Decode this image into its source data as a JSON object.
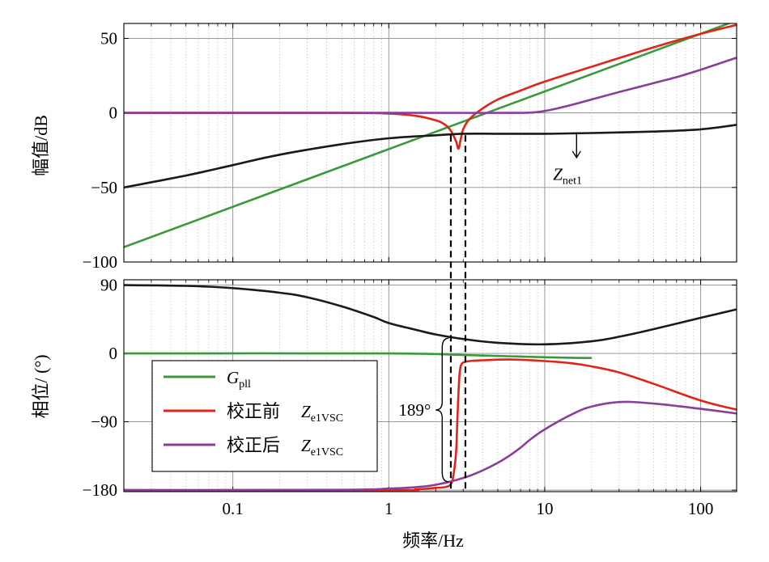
{
  "chart_data": [
    {
      "type": "line",
      "panel": "magnitude",
      "ylabel": "幅值/dB",
      "xscale": "log",
      "xlim": [
        0.02,
        170
      ],
      "ylim": [
        -100,
        60
      ],
      "xticks": [
        0.1,
        1,
        10,
        100
      ],
      "xtick_labels": [
        "0.1",
        "1",
        "10",
        "100"
      ],
      "yticks": [
        -100,
        -50,
        0,
        50
      ],
      "ytick_labels": [
        "−100",
        "−50",
        "0",
        "50"
      ],
      "grid": true,
      "annotations": [
        {
          "text": "Z",
          "sub": "net1",
          "x": 14,
          "y": -45
        },
        {
          "type": "arrow",
          "x": 16,
          "y_from": -13,
          "y_to": -30
        },
        {
          "type": "dashed-line",
          "x": 2.5,
          "y_from": -15
        },
        {
          "type": "dashed-line",
          "x": 3.1,
          "y_from": -15
        }
      ],
      "series": [
        {
          "name": "Gpll",
          "color": "#3a9a3a",
          "x": [
            0.02,
            170
          ],
          "y": [
            -90,
            62
          ]
        },
        {
          "name": "校正前 Ze1VSC",
          "color": "#e02418",
          "x": [
            0.02,
            0.5,
            1,
            1.5,
            2,
            2.3,
            2.5,
            2.7,
            2.8,
            2.9,
            3,
            3.3,
            4,
            5,
            7,
            10,
            20,
            50,
            100,
            170
          ],
          "y": [
            0,
            0,
            -0.5,
            -2,
            -5,
            -8,
            -12,
            -19,
            -24,
            -17,
            -11,
            -4,
            3,
            9,
            15,
            21,
            31,
            44,
            53,
            59
          ]
        },
        {
          "name": "校正后 Ze1VSC",
          "color": "#8a3d9a",
          "x": [
            0.02,
            1,
            5,
            8,
            10,
            12,
            15,
            20,
            30,
            50,
            70,
            100,
            170
          ],
          "y": [
            0,
            0,
            0,
            0.2,
            1.3,
            3,
            5.5,
            9,
            14,
            20,
            24,
            29,
            37
          ]
        },
        {
          "name": "Znet1",
          "color": "#1a1a1a",
          "x": [
            0.02,
            0.05,
            0.1,
            0.2,
            0.5,
            1,
            2,
            3,
            5,
            10,
            20,
            50,
            100,
            170
          ],
          "y": [
            -50,
            -42,
            -35,
            -28,
            -21,
            -17,
            -15,
            -14,
            -14,
            -14,
            -13.5,
            -12.5,
            -11,
            -8
          ]
        }
      ]
    },
    {
      "type": "line",
      "panel": "phase",
      "xlabel": "频率/Hz",
      "ylabel": "相位/ (°)",
      "xscale": "log",
      "xlim": [
        0.02,
        170
      ],
      "ylim": [
        -182,
        97
      ],
      "xticks": [
        0.1,
        1,
        10,
        100
      ],
      "xtick_labels": [
        "0.1",
        "1",
        "10",
        "100"
      ],
      "yticks": [
        -180,
        -90,
        0,
        90
      ],
      "ytick_labels": [
        "−180",
        "−90",
        "0",
        "90"
      ],
      "grid": true,
      "legend": {
        "placement": "bottom-left",
        "entries": [
          {
            "label": "",
            "symbol": "G",
            "sub": "pll",
            "color": "#3a9a3a"
          },
          {
            "label": "校正前",
            "symbol": "Z",
            "sub": "e1VSC",
            "color": "#e02418"
          },
          {
            "label": "校正后",
            "symbol": "Z",
            "sub": "e1VSC",
            "color": "#8a3d9a"
          }
        ]
      },
      "annotations": [
        {
          "text": "189°",
          "type": "brace",
          "x": 2.2,
          "y_from": -169,
          "y_to": 20
        }
      ],
      "series": [
        {
          "name": "Gpll",
          "color": "#3a9a3a",
          "x": [
            0.02,
            1,
            3,
            10,
            20
          ],
          "y": [
            0,
            0,
            -2,
            -5,
            -6
          ]
        },
        {
          "name": "校正前 Ze1VSC",
          "color": "#e02418",
          "x": [
            0.02,
            1,
            1.5,
            2,
            2.3,
            2.5,
            2.6,
            2.7,
            2.75,
            2.8,
            2.85,
            2.9,
            3,
            3.3,
            4,
            6,
            10,
            15,
            20,
            30,
            50,
            100,
            170
          ],
          "y": [
            -180,
            -180,
            -179,
            -177,
            -176,
            -172,
            -160,
            -130,
            -90,
            -50,
            -25,
            -16,
            -12,
            -10,
            -9,
            -8,
            -10,
            -13,
            -17,
            -25,
            -40,
            -62,
            -74
          ]
        },
        {
          "name": "校正后 Ze1VSC",
          "color": "#8a3d9a",
          "x": [
            0.02,
            0.5,
            1,
            1.5,
            2,
            3,
            4,
            5,
            6,
            7,
            8,
            10,
            15,
            20,
            30,
            50,
            100,
            170
          ],
          "y": [
            -180,
            -179.5,
            -178,
            -176,
            -173,
            -164,
            -154,
            -144,
            -134,
            -124,
            -114,
            -100,
            -80,
            -70,
            -64,
            -66,
            -73,
            -79
          ]
        },
        {
          "name": "Znet1",
          "color": "#1a1a1a",
          "x": [
            0.02,
            0.05,
            0.1,
            0.2,
            0.3,
            0.5,
            0.8,
            1,
            1.5,
            2,
            3,
            5,
            10,
            20,
            30,
            50,
            100,
            170
          ],
          "y": [
            90,
            89,
            86,
            80,
            74,
            62,
            48,
            40,
            31,
            25,
            19,
            14,
            12,
            16,
            22,
            32,
            47,
            58
          ]
        }
      ]
    }
  ]
}
